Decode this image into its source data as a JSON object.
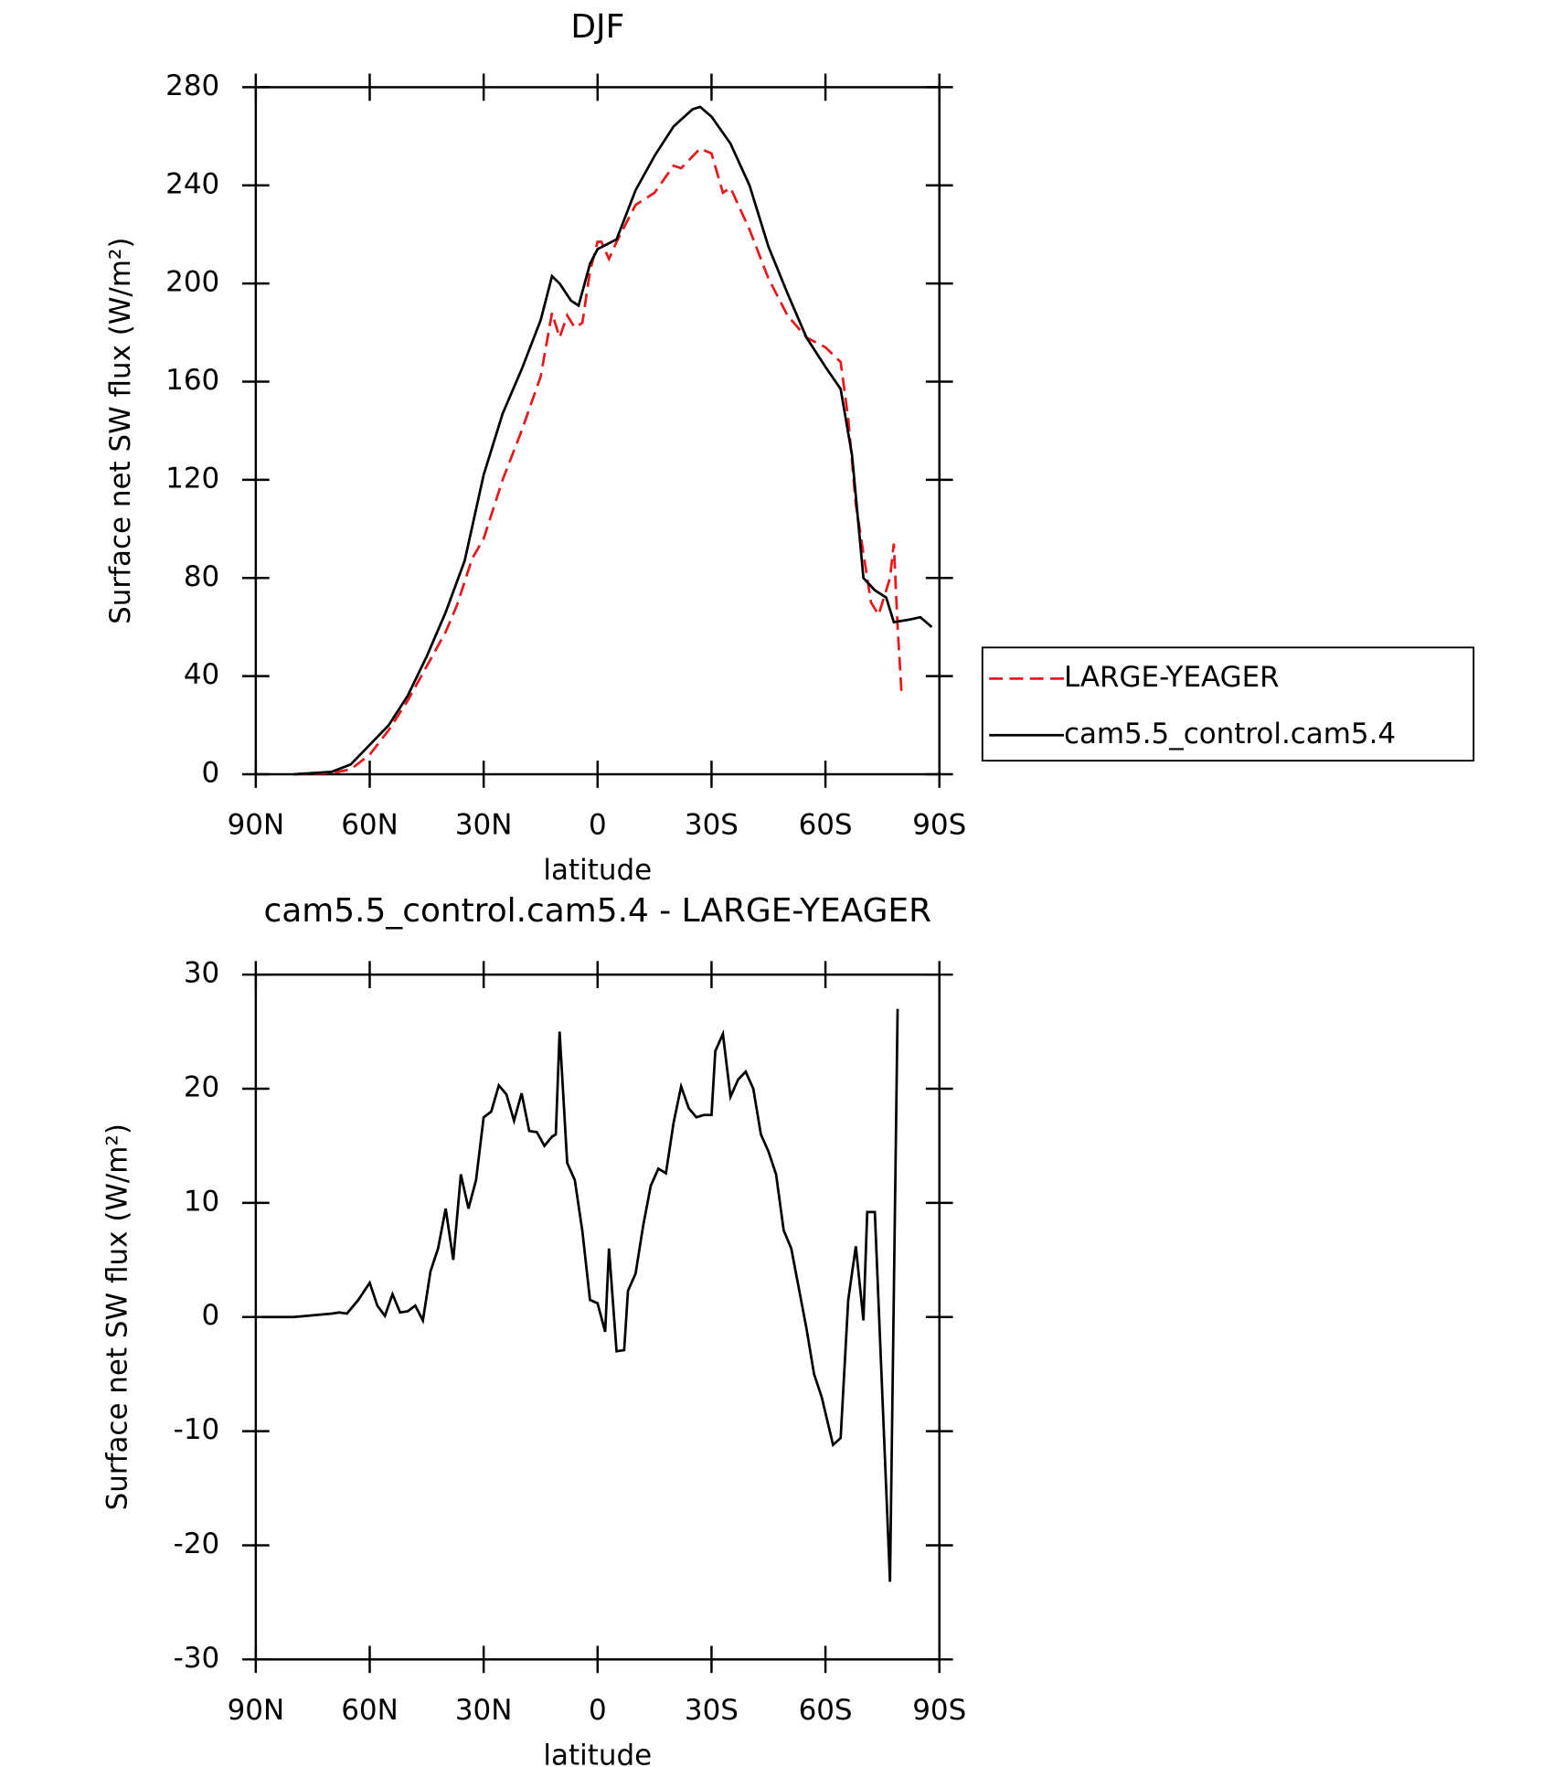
{
  "chart_data": [
    {
      "type": "line",
      "title": "DJF",
      "xlabel": "latitude",
      "ylabel": "Surface net SW flux (W/m²)",
      "xlim": [
        90,
        -90
      ],
      "xticks": [
        {
          "value": 90,
          "label": "90N"
        },
        {
          "value": 60,
          "label": "60N"
        },
        {
          "value": 30,
          "label": "30N"
        },
        0,
        {
          "value": -30,
          "label": "30S"
        },
        {
          "value": -60,
          "label": "60S"
        },
        {
          "value": -90,
          "label": "90S"
        }
      ],
      "ylim": [
        0,
        280
      ],
      "yticks": [
        0,
        40,
        80,
        120,
        160,
        200,
        240,
        280
      ],
      "legend": "right",
      "series": [
        {
          "name": "LARGE-YEAGER",
          "color": "#e8171b",
          "style": "dashed",
          "x": [
            80,
            70,
            65,
            60,
            55,
            50,
            45,
            40,
            37,
            33,
            30,
            25,
            20,
            15,
            12,
            10,
            8,
            6,
            4,
            2,
            0,
            -1,
            -3,
            -5,
            -10,
            -15,
            -20,
            -22,
            -27,
            -30,
            -33,
            -35,
            -40,
            -45,
            -50,
            -55,
            -60,
            -64,
            -66,
            -68,
            -70,
            -72,
            -74,
            -77,
            -78,
            -79,
            -80
          ],
          "values": [
            0,
            0.5,
            2,
            8,
            18,
            30,
            44,
            58,
            69,
            88,
            96,
            120,
            140,
            162,
            188,
            178,
            187,
            182,
            184,
            205,
            217,
            217,
            210,
            217,
            232,
            237,
            248,
            247,
            255,
            253,
            237,
            239,
            222,
            202,
            187,
            178,
            174,
            168,
            145,
            110,
            90,
            70,
            65,
            80,
            94,
            60,
            34
          ]
        },
        {
          "name": "cam5.5_control.cam5.4",
          "color": "#000000",
          "style": "solid",
          "x": [
            80,
            70,
            65,
            60,
            55,
            50,
            45,
            40,
            35,
            30,
            25,
            20,
            15,
            12,
            10,
            7,
            5,
            2,
            0,
            -5,
            -10,
            -15,
            -20,
            -25,
            -27,
            -30,
            -35,
            -40,
            -45,
            -50,
            -55,
            -60,
            -64,
            -67,
            -70,
            -73,
            -76,
            -78,
            -82,
            -85,
            -88
          ],
          "values": [
            0,
            1,
            4,
            12,
            20,
            32,
            48,
            66,
            87,
            122,
            147,
            165,
            185,
            203,
            200,
            193,
            191,
            208,
            214,
            218,
            238,
            252,
            264,
            271,
            272,
            268,
            257,
            240,
            215,
            196,
            178,
            166,
            157,
            130,
            80,
            75,
            72,
            62,
            63,
            64,
            60
          ]
        }
      ]
    },
    {
      "type": "line",
      "title": "cam5.5_control.cam5.4 - LARGE-YEAGER",
      "xlabel": "latitude",
      "ylabel": "Surface net SW flux (W/m²)",
      "xlim": [
        90,
        -90
      ],
      "xticks": [
        {
          "value": 90,
          "label": "90N"
        },
        {
          "value": 60,
          "label": "60N"
        },
        {
          "value": 30,
          "label": "30N"
        },
        0,
        {
          "value": -30,
          "label": "30S"
        },
        {
          "value": -60,
          "label": "60S"
        },
        {
          "value": -90,
          "label": "90S"
        }
      ],
      "ylim": [
        -30,
        30
      ],
      "yticks": [
        -30,
        -20,
        -10,
        0,
        10,
        20,
        30
      ],
      "series": [
        {
          "color": "#000000",
          "style": "solid",
          "x": [
            88.5,
            80,
            70,
            68,
            66,
            63,
            60,
            58,
            56,
            54,
            52,
            50,
            48,
            46,
            44,
            42,
            40,
            38,
            36,
            34,
            32,
            30,
            28,
            26,
            24,
            22,
            20,
            18,
            16,
            14,
            12,
            11,
            10,
            8,
            6,
            4,
            2,
            0,
            -2,
            -3,
            -5,
            -7,
            -8,
            -10,
            -12,
            -14,
            -16,
            -18,
            -20,
            -22,
            -24,
            -26,
            -28,
            -30,
            -31,
            -33,
            -35,
            -37,
            -39,
            -41,
            -43,
            -45,
            -47,
            -49,
            -51,
            -53,
            -55,
            -57,
            -59,
            -62,
            -64,
            -66,
            -68,
            -70,
            -71,
            -73,
            -77,
            -79
          ],
          "values": [
            0,
            0,
            0.3,
            0.4,
            0.3,
            1.5,
            3,
            1,
            0.1,
            2,
            0.4,
            0.5,
            1,
            -0.3,
            4,
            6,
            9.5,
            5,
            12.5,
            9.5,
            12,
            17.5,
            18,
            20.3,
            19.5,
            17.2,
            19.6,
            16.3,
            16.2,
            15,
            15.8,
            16,
            25,
            13.5,
            12,
            7.5,
            1.5,
            1.2,
            -1.3,
            6,
            -3,
            -2.9,
            2.3,
            3.8,
            8,
            11.5,
            13,
            12.6,
            17,
            20.2,
            18.3,
            17.5,
            17.7,
            17.7,
            23.3,
            24.8,
            19.3,
            20.8,
            21.5,
            20,
            16,
            14.5,
            12.5,
            7.6,
            6,
            2.5,
            -1,
            -5,
            -7,
            -11.2,
            -10.6,
            1.5,
            6.2,
            -0.3,
            9.2,
            9.2,
            -23.2,
            27
          ]
        }
      ]
    }
  ]
}
